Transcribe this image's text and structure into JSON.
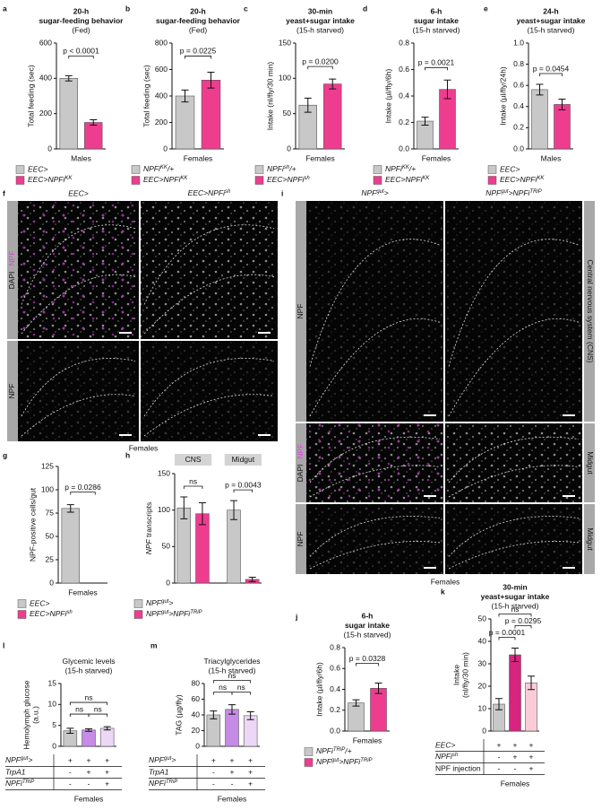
{
  "chart_data": [
    {
      "type": "bar",
      "label": "a",
      "title": [
        "20-h",
        "sugar-feeding behavior",
        "(Fed)"
      ],
      "title_bold": true,
      "ylabel": [
        "Total feeding (sec)"
      ],
      "ylim": [
        0,
        600
      ],
      "yticks": [
        0,
        200,
        400,
        600
      ],
      "values": [
        400,
        150
      ],
      "errors": [
        15,
        15
      ],
      "colors": [
        "#c8c8c8",
        "#ee3d8f"
      ],
      "pvalues": [
        "p < 0.0001"
      ],
      "group": "Males",
      "legend": [
        "EEC>",
        [
          {
            "text": "EEC>NPFi"
          },
          {
            "text": "KK",
            "sup": true
          }
        ]
      ]
    },
    {
      "type": "bar",
      "label": "b",
      "title": [
        "20-h",
        "sugar-feeding behavior",
        "(Fed)"
      ],
      "title_bold": true,
      "ylabel": [
        "Total feeding (sec)"
      ],
      "ylim": [
        0,
        800
      ],
      "yticks": [
        0,
        200,
        400,
        600,
        800
      ],
      "values": [
        400,
        520
      ],
      "errors": [
        45,
        60
      ],
      "colors": [
        "#c8c8c8",
        "#ee3d8f"
      ],
      "pvalues": [
        "p = 0.0225"
      ],
      "group": "Females",
      "legend": [
        [
          {
            "text": "NPFi"
          },
          {
            "text": "KK",
            "sup": true
          },
          {
            "text": "/+"
          }
        ],
        [
          {
            "text": "EEC>NPFi"
          },
          {
            "text": "KK",
            "sup": true
          }
        ]
      ]
    },
    {
      "type": "bar",
      "label": "c",
      "title": [
        "30-min",
        "yeast+sugar intake",
        "(15-h starved)"
      ],
      "title_bold": true,
      "ylabel": [
        "Intake (nl/fly/30 min)"
      ],
      "ylim": [
        0,
        150
      ],
      "yticks": [
        0,
        50,
        100,
        150
      ],
      "values": [
        62,
        92
      ],
      "errors": [
        10,
        7
      ],
      "colors": [
        "#c8c8c8",
        "#ee3d8f"
      ],
      "pvalues": [
        "p = 0.0200"
      ],
      "group": "Females",
      "legend": [
        [
          {
            "text": "NPFi"
          },
          {
            "text": "sh",
            "sup": true
          },
          {
            "text": "/+"
          }
        ],
        [
          {
            "text": "EEC>NPFi"
          },
          {
            "text": "sh",
            "sup": true
          }
        ]
      ]
    },
    {
      "type": "bar",
      "label": "d",
      "title": [
        "6-h",
        "sugar intake",
        "(15-h starved)"
      ],
      "title_bold": true,
      "ylabel": [
        "Intake (µl/fly/6h)"
      ],
      "ylim": [
        0,
        0.8
      ],
      "yticks": [
        {
          "value": 0,
          "label": "0.0"
        },
        0.2,
        0.4,
        0.6,
        0.8
      ],
      "values": [
        0.21,
        0.45
      ],
      "errors": [
        0.03,
        0.07
      ],
      "colors": [
        "#c8c8c8",
        "#ee3d8f"
      ],
      "pvalues": [
        "p = 0.0021"
      ],
      "group": "Females",
      "legend": [
        [
          {
            "text": "NPFi"
          },
          {
            "text": "KK",
            "sup": true
          },
          {
            "text": "/+"
          }
        ],
        [
          {
            "text": "EEC>NPFi"
          },
          {
            "text": "KK",
            "sup": true
          }
        ]
      ]
    },
    {
      "type": "bar",
      "label": "e",
      "title": [
        "24-h",
        "yeast+sugar intake",
        "(15-h starved)"
      ],
      "title_bold": true,
      "ylabel": [
        "Intake (µl/fly/24h)"
      ],
      "ylim": [
        0,
        1
      ],
      "yticks": [
        {
          "value": 0,
          "label": "0.0"
        },
        0.2,
        0.4,
        0.6,
        0.8,
        {
          "value": 1,
          "label": "1.0"
        }
      ],
      "values": [
        0.56,
        0.42
      ],
      "errors": [
        0.05,
        0.05
      ],
      "colors": [
        "#c8c8c8",
        "#ee3d8f"
      ],
      "pvalues": [
        "p = 0.0454"
      ],
      "group": "Males",
      "legend": [
        "EEC>",
        [
          {
            "text": "EEC>NPFi"
          },
          {
            "text": "KK",
            "sup": true
          }
        ]
      ]
    },
    {
      "type": "bar",
      "label": "g",
      "ylabel": [
        "NPF-positive cells/gut"
      ],
      "ylim": [
        0,
        125
      ],
      "yticks": [
        0,
        25,
        50,
        75,
        100,
        125
      ],
      "values": [
        80,
        0
      ],
      "errors": [
        4,
        0
      ],
      "colors": [
        "#c8c8c8",
        "#ee3d8f"
      ],
      "pvalues": [
        "p = 0.0286"
      ],
      "group": "Females",
      "legend": [
        "EEC>",
        [
          {
            "text": "EEC>NPFi"
          },
          {
            "text": "sh",
            "sup": true
          }
        ]
      ]
    },
    {
      "type": "grouped_bar",
      "label": "h",
      "ylabel": [
        [
          {
            "text": "NPF",
            "italic": true
          },
          {
            "text": " transcripts"
          }
        ]
      ],
      "ylim": [
        0,
        150
      ],
      "yticks": [
        0,
        50,
        100,
        150
      ],
      "groups": [
        {
          "name": "CNS",
          "values": [
            103,
            95
          ],
          "errors": [
            15,
            15
          ],
          "pvalues": [
            "ns"
          ]
        },
        {
          "name": "Midgut",
          "values": [
            100,
            5
          ],
          "errors": [
            13,
            3
          ],
          "pvalues": [
            "p = 0.0043"
          ]
        }
      ],
      "colors": [
        "#c8c8c8",
        "#ee3d8f"
      ],
      "legend": [
        [
          {
            "text": "NPF"
          },
          {
            "text": "gut",
            "sup": true
          },
          {
            "text": ">"
          }
        ],
        [
          {
            "text": "NPF"
          },
          {
            "text": "gut",
            "sup": true
          },
          {
            "text": ">NPFi"
          },
          {
            "text": "TRiP",
            "sup": true
          }
        ]
      ]
    },
    {
      "type": "bar",
      "label": "j",
      "title": [
        "6-h",
        "sugar intake",
        "(15-h starved)"
      ],
      "title_bold": true,
      "ylabel": [
        "Intake (µl/fly/6h)"
      ],
      "ylim": [
        0,
        0.8
      ],
      "yticks": [
        {
          "value": 0,
          "label": "0.0"
        },
        0.2,
        0.4,
        0.6,
        0.8
      ],
      "values": [
        0.27,
        0.41
      ],
      "errors": [
        0.03,
        0.05
      ],
      "colors": [
        "#c8c8c8",
        "#ee3d8f"
      ],
      "pvalues": [
        "p = 0.0328"
      ],
      "group": "Females",
      "legend": [
        [
          {
            "text": "NPFi"
          },
          {
            "text": "TRiP",
            "sup": true
          },
          {
            "text": "/+"
          }
        ],
        [
          {
            "text": "NPF"
          },
          {
            "text": "gut",
            "sup": true
          },
          {
            "text": ">NPFi"
          },
          {
            "text": "TRiP",
            "sup": true
          }
        ]
      ]
    },
    {
      "type": "bar",
      "label": "k",
      "title": [
        "30-min",
        "yeast+sugar intake",
        "(15-h starved)"
      ],
      "title_bold": true,
      "ylabel": [
        "Intake",
        "(nl/fly/30 min)"
      ],
      "ylim": [
        0,
        50
      ],
      "yticks": [
        0,
        10,
        20,
        30,
        40,
        50
      ],
      "values": [
        12,
        34,
        21.5
      ],
      "errors": [
        2.5,
        3,
        3
      ],
      "colors": [
        "#c8c8c8",
        "#d6247f",
        "#f9ccd8"
      ],
      "pvalues": [
        "ns",
        "p = 0.0295",
        "p = 0.0001"
      ],
      "group": "Females",
      "table": [
        {
          "label": "EEC>",
          "italic": true,
          "cells": [
            "+",
            "+",
            "+"
          ]
        },
        {
          "label": [
            {
              "text": "NPFi"
            },
            {
              "text": "sh",
              "sup": true
            }
          ],
          "italic": true,
          "cells": [
            "-",
            "+",
            "+"
          ]
        },
        {
          "label": "NPF injection",
          "cells": [
            "-",
            "-",
            "+"
          ]
        }
      ]
    },
    {
      "type": "bar",
      "label": "l",
      "title": [
        "Glycemic levels",
        "(15-h starved)"
      ],
      "title_bold": false,
      "ylabel": [
        "Hemolymph glucose",
        "(a.u.)"
      ],
      "ylim": [
        0,
        15
      ],
      "yticks": [
        0,
        5,
        10,
        15
      ],
      "values": [
        3.7,
        3.9,
        4.3
      ],
      "errors": [
        0.6,
        0.3,
        0.4
      ],
      "colors": [
        "#c8c8c8",
        "#c58be6",
        "#ecd8f6"
      ],
      "pvalues": [
        "ns",
        "ns",
        "ns"
      ],
      "group": "Females",
      "table": [
        {
          "label": [
            {
              "text": "NPF"
            },
            {
              "text": "gut",
              "sup": true
            },
            {
              "text": ">"
            }
          ],
          "italic": true,
          "cells": [
            "+",
            "+",
            "+"
          ]
        },
        {
          "label": "TrpA1",
          "italic": true,
          "cells": [
            "-",
            "+",
            "+"
          ]
        },
        {
          "label": [
            {
              "text": "NPFi"
            },
            {
              "text": "TRiP",
              "sup": true
            }
          ],
          "italic": true,
          "cells": [
            "-",
            "-",
            "+"
          ]
        }
      ]
    },
    {
      "type": "bar",
      "label": "m",
      "title": [
        "Triacylglycerides",
        "(15-h starved)"
      ],
      "title_bold": false,
      "ylabel": [
        "TAG (µg/fly)"
      ],
      "ylim": [
        0,
        80
      ],
      "yticks": [
        0,
        20,
        40,
        60,
        80
      ],
      "values": [
        40,
        47,
        39
      ],
      "errors": [
        5,
        6,
        5
      ],
      "colors": [
        "#c8c8c8",
        "#c58be6",
        "#ecd8f6"
      ],
      "pvalues": [
        "ns",
        "ns",
        "ns"
      ],
      "group": "Females",
      "table": [
        {
          "label": [
            {
              "text": "NPF"
            },
            {
              "text": "gut",
              "sup": true
            },
            {
              "text": ">"
            }
          ],
          "italic": true,
          "cells": [
            "+",
            "+",
            "+"
          ]
        },
        {
          "label": "TrpA1",
          "italic": true,
          "cells": [
            "-",
            "+",
            "+"
          ]
        },
        {
          "label": [
            {
              "text": "NPFi"
            },
            {
              "text": "TRiP",
              "sup": true
            }
          ],
          "italic": true,
          "cells": [
            "-",
            "-",
            "+"
          ]
        }
      ]
    }
  ],
  "image_panels": [
    {
      "label": "f",
      "columns": [
        "EEC>",
        [
          {
            "text": "EEC>NPFi"
          },
          {
            "text": "sh",
            "sup": true
          }
        ]
      ],
      "rows": [
        {
          "left": [
            {
              "text": "DAPI"
            },
            {
              "text": "NPF",
              "color": "#e040e0"
            }
          ]
        },
        {
          "left": [
            {
              "text": "NPF"
            }
          ]
        }
      ],
      "footer": "Females"
    },
    {
      "label": "i",
      "columns": [
        [
          {
            "text": "NPF"
          },
          {
            "text": "gut",
            "sup": true
          },
          {
            "text": ">"
          }
        ],
        [
          {
            "text": "NPF"
          },
          {
            "text": "gut",
            "sup": true
          },
          {
            "text": ">NPFi"
          },
          {
            "text": "TRiP",
            "sup": true
          }
        ]
      ],
      "rows": [
        {
          "left": [
            {
              "text": "NPF"
            }
          ],
          "right": "Central nervous system (CNS)"
        },
        {
          "left": [
            {
              "text": "DAPI"
            },
            {
              "text": "NPF",
              "color": "#e040e0"
            }
          ],
          "right": "Midgut"
        },
        {
          "left": [
            {
              "text": "NPF"
            }
          ],
          "right": "Midgut"
        }
      ],
      "footer": "Females"
    }
  ]
}
